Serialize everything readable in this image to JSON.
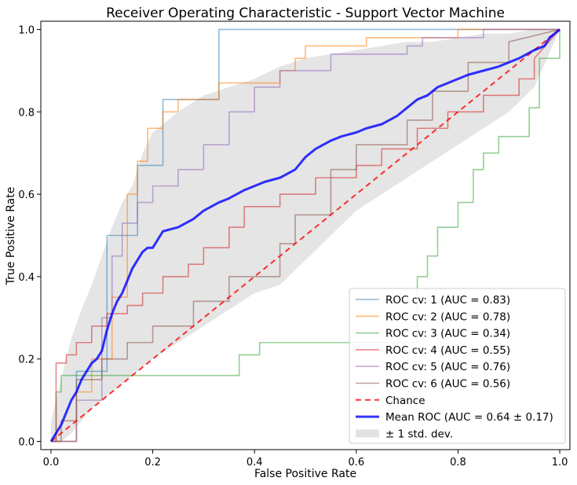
{
  "chart_data": {
    "type": "line",
    "title": "Receiver Operating Characteristic - Support Vector Machine",
    "xlabel": "False Positive Rate",
    "ylabel": "True Positive Rate",
    "xlim": [
      -0.02,
      1.02
    ],
    "ylim": [
      -0.02,
      1.02
    ],
    "xticks": [
      "0.0",
      "0.2",
      "0.4",
      "0.6",
      "0.8",
      "1.0"
    ],
    "yticks": [
      "0.0",
      "0.2",
      "0.4",
      "0.6",
      "0.8",
      "1.0"
    ],
    "grid": false,
    "legend_position": "lower-right",
    "std_band": {
      "name": "± 1 std. dev.",
      "color": "#bfbfbf",
      "x": [
        0,
        0.02,
        0.04,
        0.06,
        0.08,
        0.1,
        0.12,
        0.14,
        0.16,
        0.18,
        0.2,
        0.25,
        0.3,
        0.35,
        0.4,
        0.45,
        0.5,
        0.55,
        0.6,
        0.65,
        0.7,
        0.75,
        0.8,
        0.85,
        0.9,
        0.95,
        1.0
      ],
      "upper": [
        0.05,
        0.15,
        0.25,
        0.32,
        0.38,
        0.45,
        0.52,
        0.58,
        0.62,
        0.7,
        0.75,
        0.8,
        0.84,
        0.86,
        0.88,
        0.91,
        0.93,
        0.94,
        0.95,
        0.96,
        0.97,
        0.97,
        0.98,
        0.99,
        0.99,
        1.0,
        1.0
      ],
      "lower": [
        0,
        0.0,
        0.02,
        0.05,
        0.08,
        0.1,
        0.12,
        0.14,
        0.16,
        0.18,
        0.2,
        0.24,
        0.28,
        0.32,
        0.36,
        0.38,
        0.44,
        0.5,
        0.56,
        0.6,
        0.64,
        0.68,
        0.72,
        0.76,
        0.8,
        0.86,
        1.0
      ]
    },
    "series": [
      {
        "name": "ROC cv: 1 (AUC = 0.83)",
        "color": "#1f77b4",
        "width": 1.6,
        "opacity": 0.5,
        "x": [
          0,
          0.05,
          0.05,
          0.11,
          0.11,
          0.17,
          0.17,
          0.22,
          0.22,
          0.33,
          0.33,
          1.0
        ],
        "y": [
          0,
          0,
          0.17,
          0.17,
          0.5,
          0.5,
          0.67,
          0.67,
          0.83,
          0.83,
          1.0,
          1.0
        ]
      },
      {
        "name": "ROC cv: 2 (AUC = 0.78)",
        "color": "#ff7f0e",
        "width": 1.6,
        "opacity": 0.55,
        "x": [
          0,
          0.05,
          0.05,
          0.08,
          0.08,
          0.12,
          0.12,
          0.15,
          0.15,
          0.17,
          0.17,
          0.19,
          0.19,
          0.22,
          0.22,
          0.25,
          0.25,
          0.33,
          0.33,
          0.45,
          0.45,
          0.48,
          0.48,
          0.5,
          0.5,
          0.62,
          0.62,
          0.8,
          0.8,
          0.9,
          0.9,
          1.0
        ],
        "y": [
          0,
          0,
          0.12,
          0.12,
          0.2,
          0.2,
          0.35,
          0.35,
          0.6,
          0.6,
          0.68,
          0.68,
          0.76,
          0.76,
          0.8,
          0.8,
          0.83,
          0.83,
          0.87,
          0.87,
          0.9,
          0.9,
          0.93,
          0.93,
          0.96,
          0.96,
          0.98,
          0.98,
          1.0,
          1.0,
          1.0,
          1.0
        ]
      },
      {
        "name": "ROC cv: 3 (AUC = 0.34)",
        "color": "#2ca02c",
        "width": 1.6,
        "opacity": 0.5,
        "x": [
          0,
          0.01,
          0.01,
          0.02,
          0.02,
          0.1,
          0.1,
          0.37,
          0.37,
          0.41,
          0.41,
          0.72,
          0.72,
          0.74,
          0.74,
          0.76,
          0.76,
          0.8,
          0.8,
          0.83,
          0.83,
          0.85,
          0.85,
          0.88,
          0.88,
          0.94,
          0.94,
          0.96,
          0.96,
          1.0,
          1.0
        ],
        "y": [
          0,
          0,
          0.12,
          0.12,
          0.16,
          0.16,
          0.16,
          0.16,
          0.21,
          0.21,
          0.24,
          0.24,
          0.4,
          0.4,
          0.45,
          0.45,
          0.52,
          0.52,
          0.58,
          0.58,
          0.66,
          0.66,
          0.7,
          0.7,
          0.74,
          0.74,
          0.81,
          0.81,
          0.93,
          0.93,
          1.0
        ]
      },
      {
        "name": "ROC cv: 4 (AUC = 0.55)",
        "color": "#d62728",
        "width": 1.6,
        "opacity": 0.55,
        "x": [
          0,
          0.01,
          0.01,
          0.03,
          0.03,
          0.05,
          0.05,
          0.08,
          0.08,
          0.11,
          0.11,
          0.15,
          0.15,
          0.18,
          0.18,
          0.22,
          0.22,
          0.27,
          0.27,
          0.3,
          0.3,
          0.35,
          0.35,
          0.38,
          0.38,
          0.45,
          0.45,
          0.52,
          0.52,
          0.6,
          0.6,
          0.65,
          0.65,
          0.72,
          0.72,
          0.78,
          0.78,
          0.85,
          0.85,
          0.92,
          0.92,
          0.95,
          0.95,
          1.0
        ],
        "y": [
          0,
          0,
          0.19,
          0.19,
          0.21,
          0.21,
          0.24,
          0.24,
          0.28,
          0.28,
          0.31,
          0.31,
          0.33,
          0.33,
          0.36,
          0.36,
          0.4,
          0.4,
          0.43,
          0.43,
          0.47,
          0.47,
          0.52,
          0.52,
          0.57,
          0.57,
          0.6,
          0.6,
          0.64,
          0.64,
          0.67,
          0.67,
          0.71,
          0.71,
          0.76,
          0.76,
          0.8,
          0.8,
          0.84,
          0.84,
          0.88,
          0.88,
          0.93,
          1.0
        ]
      },
      {
        "name": "ROC cv: 5 (AUC = 0.76)",
        "color": "#9467bd",
        "width": 1.6,
        "opacity": 0.55,
        "x": [
          0,
          0.05,
          0.05,
          0.1,
          0.1,
          0.12,
          0.12,
          0.14,
          0.14,
          0.17,
          0.17,
          0.2,
          0.2,
          0.25,
          0.25,
          0.3,
          0.3,
          0.35,
          0.35,
          0.4,
          0.4,
          0.45,
          0.45,
          0.55,
          0.55,
          0.7,
          0.7,
          0.73,
          0.73,
          0.85,
          0.85,
          1.0
        ],
        "y": [
          0,
          0,
          0.1,
          0.1,
          0.3,
          0.3,
          0.45,
          0.45,
          0.53,
          0.53,
          0.58,
          0.58,
          0.62,
          0.62,
          0.66,
          0.66,
          0.72,
          0.72,
          0.8,
          0.8,
          0.86,
          0.86,
          0.9,
          0.9,
          0.94,
          0.94,
          0.96,
          0.96,
          0.98,
          0.98,
          1.0,
          1.0
        ]
      },
      {
        "name": "ROC cv: 6 (AUC = 0.56)",
        "color": "#8c564b",
        "width": 1.6,
        "opacity": 0.55,
        "x": [
          0,
          0.02,
          0.02,
          0.05,
          0.05,
          0.1,
          0.1,
          0.15,
          0.15,
          0.2,
          0.2,
          0.28,
          0.28,
          0.35,
          0.35,
          0.45,
          0.45,
          0.48,
          0.48,
          0.55,
          0.55,
          0.6,
          0.6,
          0.7,
          0.7,
          0.75,
          0.75,
          0.82,
          0.82,
          0.9,
          0.9,
          1.0
        ],
        "y": [
          0,
          0,
          0.05,
          0.05,
          0.15,
          0.15,
          0.2,
          0.2,
          0.24,
          0.24,
          0.28,
          0.28,
          0.34,
          0.34,
          0.4,
          0.4,
          0.48,
          0.48,
          0.55,
          0.55,
          0.66,
          0.66,
          0.72,
          0.72,
          0.78,
          0.78,
          0.85,
          0.85,
          0.92,
          0.92,
          0.97,
          1.0
        ]
      },
      {
        "name": "Chance",
        "color": "#ff0000",
        "width": 2,
        "opacity": 0.8,
        "dash": "7,5",
        "x": [
          0,
          1
        ],
        "y": [
          0,
          1
        ]
      },
      {
        "name": "Mean ROC (AUC = 0.64 ± 0.17)",
        "color": "#0000ff",
        "width": 3,
        "opacity": 0.8,
        "x": [
          0,
          0.01,
          0.02,
          0.03,
          0.04,
          0.05,
          0.06,
          0.07,
          0.08,
          0.09,
          0.1,
          0.11,
          0.12,
          0.13,
          0.14,
          0.15,
          0.16,
          0.17,
          0.18,
          0.19,
          0.2,
          0.21,
          0.22,
          0.25,
          0.28,
          0.3,
          0.33,
          0.35,
          0.38,
          0.4,
          0.42,
          0.45,
          0.48,
          0.5,
          0.52,
          0.55,
          0.57,
          0.6,
          0.62,
          0.65,
          0.68,
          0.7,
          0.72,
          0.74,
          0.76,
          0.78,
          0.8,
          0.82,
          0.85,
          0.88,
          0.9,
          0.92,
          0.95,
          0.97,
          0.98,
          0.99,
          1.0
        ],
        "y": [
          0,
          0.02,
          0.04,
          0.07,
          0.1,
          0.12,
          0.15,
          0.17,
          0.19,
          0.2,
          0.22,
          0.27,
          0.31,
          0.34,
          0.36,
          0.39,
          0.42,
          0.44,
          0.46,
          0.47,
          0.47,
          0.49,
          0.51,
          0.52,
          0.54,
          0.56,
          0.58,
          0.59,
          0.61,
          0.62,
          0.63,
          0.64,
          0.66,
          0.69,
          0.71,
          0.73,
          0.74,
          0.75,
          0.76,
          0.77,
          0.79,
          0.81,
          0.83,
          0.84,
          0.86,
          0.87,
          0.88,
          0.89,
          0.9,
          0.91,
          0.92,
          0.93,
          0.95,
          0.96,
          0.98,
          0.99,
          1.0
        ]
      }
    ]
  }
}
